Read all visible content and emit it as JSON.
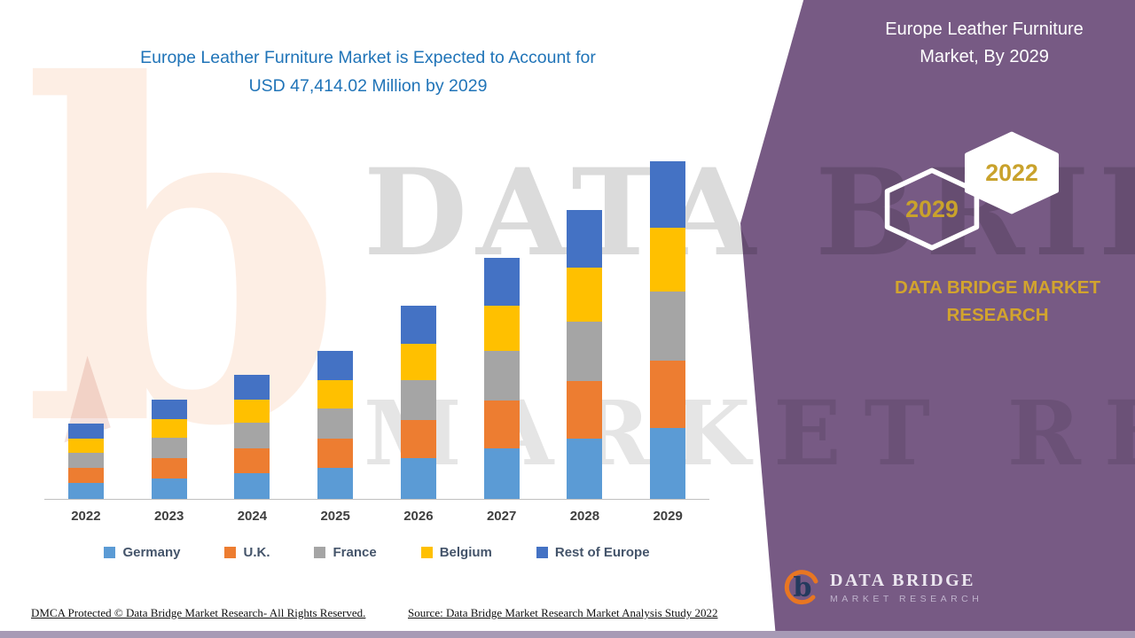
{
  "title": {
    "line1": "Europe Leather Furniture Market is Expected to Account for",
    "line2": "USD 47,414.02 Million by 2029"
  },
  "side_panel": {
    "heading_line1": "Europe Leather Furniture",
    "heading_line2": "Market, By 2029",
    "hexagon_back": {
      "label": "2022"
    },
    "hexagon_front": {
      "label": "2029"
    },
    "brand_line1": "DATA BRIDGE MARKET",
    "brand_line2": "RESEARCH",
    "logo": {
      "title": "DATA BRIDGE",
      "subtitle": "MARKET RESEARCH"
    }
  },
  "watermark": {
    "letter": "b",
    "line1": "DATA BRIDGE",
    "line2": "MARKET RESEARCH"
  },
  "footer": {
    "dmca": "DMCA Protected © Data Bridge Market Research- All Rights Reserved.",
    "source": "Source: Data Bridge Market Research Market Analysis Study 2022"
  },
  "icons": {
    "logo_mark": "stylized-b-with-orange-swoosh",
    "hexagon": "hexagon-outline"
  },
  "colors": {
    "panel_purple": "#775A84",
    "bottom_strip": "#A79AB5",
    "title_blue": "#2074B8",
    "gold_year": "#C9A22C",
    "gold_brand": "#D2A42E",
    "axis_gray": "#C0C0C0",
    "legend_text": "#44546A"
  },
  "chart_data": {
    "type": "bar",
    "stacked": true,
    "title": "Europe Leather Furniture Market is Expected to Account for USD 47,414.02 Million by 2029",
    "unit": "USD Million",
    "categories": [
      "2022",
      "2023",
      "2024",
      "2025",
      "2026",
      "2027",
      "2028",
      "2029"
    ],
    "series": [
      {
        "name": "Germany",
        "color": "#5B9BD5",
        "values": [
          2200,
          2900,
          3650,
          4350,
          5700,
          7100,
          8500,
          9950
        ]
      },
      {
        "name": "U.K.",
        "color": "#ED7D31",
        "values": [
          2100,
          2800,
          3500,
          4150,
          5400,
          6750,
          8100,
          9500
        ]
      },
      {
        "name": "France",
        "color": "#A5A5A5",
        "values": [
          2150,
          2850,
          3550,
          4250,
          5550,
          6950,
          8300,
          9700
        ]
      },
      {
        "name": "Belgium",
        "color": "#FFC000",
        "values": [
          2000,
          2650,
          3300,
          3900,
          5100,
          6400,
          7650,
          8900
        ]
      },
      {
        "name": "Rest of Europe",
        "color": "#4472C4",
        "values": [
          2100,
          2750,
          3450,
          4100,
          5350,
          6700,
          8050,
          9364.02
        ]
      }
    ],
    "ylim": [
      0,
      48000
    ],
    "xlabel": "",
    "ylabel": "",
    "gridlines": false,
    "legend_position": "bottom"
  }
}
